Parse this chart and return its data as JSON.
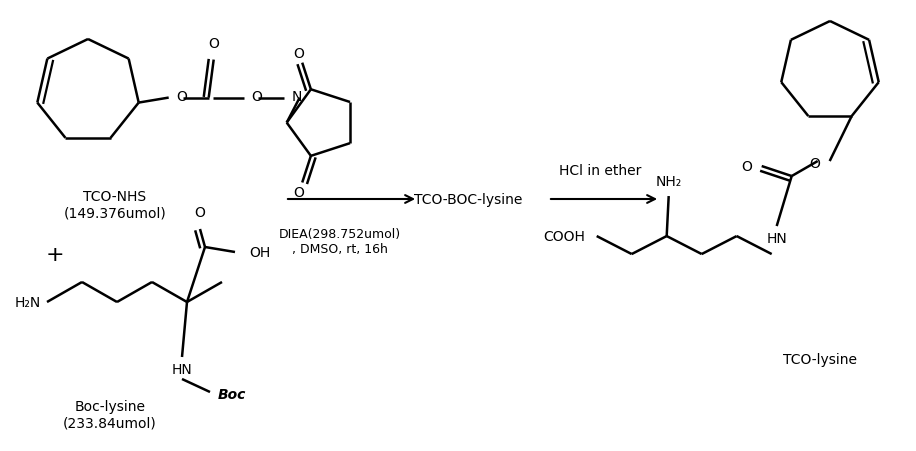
{
  "background_color": "#ffffff",
  "line_color": "#000000",
  "text_color": "#000000",
  "figsize": [
    9.16,
    4.52
  ],
  "dpi": 100,
  "label_tco_nhs": "TCO-NHS\n(149.376umol)",
  "label_boc_lysine": "Boc-lysine\n(233.84umol)",
  "label_diea": "DIEA(298.752umol)\n, DMSO, rt, 16h",
  "label_tcoboc": "TCO-BOC-lysine",
  "label_hcl": "HCl in ether",
  "label_tco_lysine": "TCO-lysine"
}
